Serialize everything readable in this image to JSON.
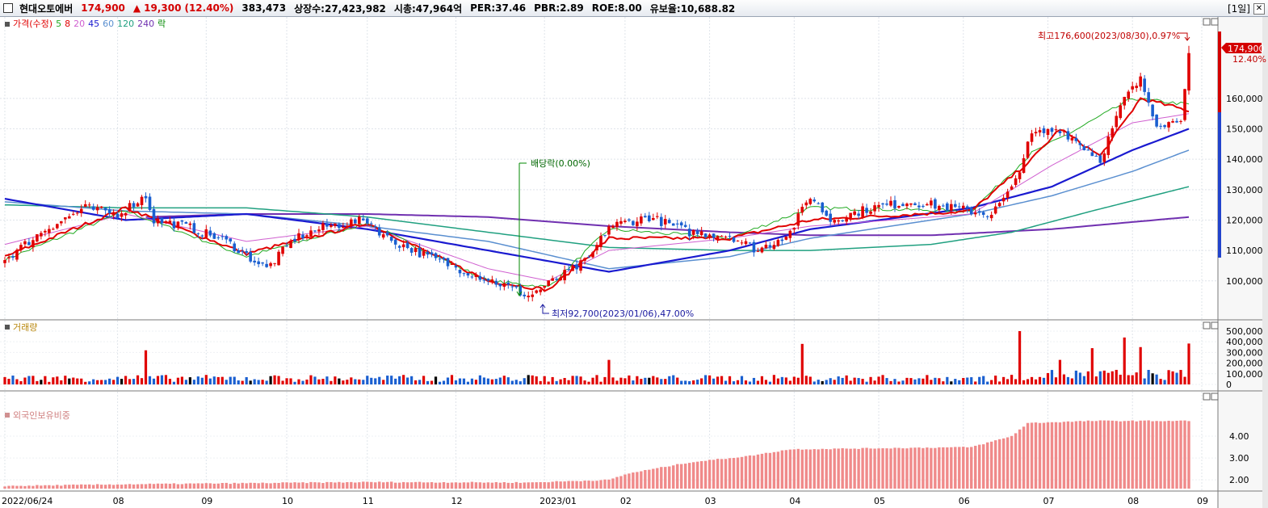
{
  "header": {
    "stock_name": "현대오토에버",
    "price": "174,900",
    "change_arrow": "▲",
    "change": "19,300",
    "change_pct": "(12.40%)",
    "volume": "383,473",
    "listed_shares": "상장수:27,423,982",
    "market_cap": "시총:47,964억",
    "per": "PER:37.46",
    "pbr": "PBR:2.89",
    "roe": "ROE:8.00",
    "retention": "유보율:10,688.82",
    "period": "[1일]",
    "close_icon": "close-icon"
  },
  "legend": {
    "items": [
      {
        "text": "가격(수정)",
        "color": "#e00000"
      },
      {
        "text": "5",
        "color": "#22aa22"
      },
      {
        "text": "8",
        "color": "#e00000"
      },
      {
        "text": "20",
        "color": "#d060d0"
      },
      {
        "text": "45",
        "color": "#1a1ad0"
      },
      {
        "text": "60",
        "color": "#5a8fd0"
      },
      {
        "text": "120",
        "color": "#20a080"
      },
      {
        "text": "240",
        "color": "#7030b0"
      },
      {
        "text": "락",
        "color": "#008800"
      }
    ]
  },
  "annotations": {
    "high": "최고176,600(2023/08/30),0.97%",
    "low": "최저92,700(2023/01/06),47.00%",
    "ex_dividend": "배당락(0.00%)",
    "last_price": "174,900",
    "last_change": "12.40%"
  },
  "volume_panel": {
    "title": "거래량"
  },
  "foreign_panel": {
    "title": "외국인보유비중"
  },
  "chart_data": [
    {
      "type": "candlestick",
      "title": "가격(수정)",
      "x_tick_labels": [
        "2022/06/24",
        "08",
        "09",
        "10",
        "11",
        "12",
        "2023/01",
        "02",
        "03",
        "04",
        "05",
        "06",
        "07",
        "08",
        "09"
      ],
      "y_tick_labels": [
        "100,000",
        "110,000",
        "120,000",
        "130,000",
        "140,000",
        "150,000",
        "160,000"
      ],
      "ylim": [
        88000,
        182000
      ],
      "close_approx": [
        [
          0,
          107000
        ],
        [
          10,
          117000
        ],
        [
          20,
          124000
        ],
        [
          28,
          122000
        ],
        [
          35,
          128000
        ],
        [
          37,
          120000
        ],
        [
          45,
          118000
        ],
        [
          55,
          113000
        ],
        [
          65,
          104000
        ],
        [
          72,
          114000
        ],
        [
          80,
          118000
        ],
        [
          90,
          120000
        ],
        [
          95,
          114000
        ],
        [
          105,
          108000
        ],
        [
          115,
          103000
        ],
        [
          125,
          98000
        ],
        [
          130,
          95000
        ],
        [
          135,
          99000
        ],
        [
          145,
          107000
        ],
        [
          150,
          118000
        ],
        [
          160,
          121000
        ],
        [
          170,
          116000
        ],
        [
          180,
          115000
        ],
        [
          187,
          110000
        ],
        [
          195,
          116000
        ],
        [
          200,
          128000
        ],
        [
          205,
          120000
        ],
        [
          215,
          124000
        ],
        [
          225,
          126000
        ],
        [
          235,
          124000
        ],
        [
          245,
          122000
        ],
        [
          250,
          130000
        ],
        [
          255,
          148000
        ],
        [
          262,
          150000
        ],
        [
          268,
          144000
        ],
        [
          272,
          140000
        ],
        [
          278,
          160000
        ],
        [
          282,
          166000
        ],
        [
          286,
          152000
        ],
        [
          290,
          152000
        ],
        [
          292,
          154000
        ],
        [
          294,
          174900
        ]
      ],
      "ma_5_approx": [
        [
          0,
          107000
        ],
        [
          30,
          123000
        ],
        [
          60,
          108000
        ],
        [
          90,
          119000
        ],
        [
          120,
          100000
        ],
        [
          135,
          98000
        ],
        [
          150,
          117000
        ],
        [
          180,
          114000
        ],
        [
          200,
          124000
        ],
        [
          240,
          123000
        ],
        [
          255,
          142000
        ],
        [
          265,
          149000
        ],
        [
          280,
          160000
        ],
        [
          294,
          158000
        ]
      ],
      "ma_8_approx": [
        [
          0,
          108000
        ],
        [
          30,
          124000
        ],
        [
          60,
          109000
        ],
        [
          90,
          119000
        ],
        [
          120,
          100000
        ],
        [
          135,
          97000
        ],
        [
          150,
          114000
        ],
        [
          180,
          114000
        ],
        [
          200,
          120000
        ],
        [
          240,
          123000
        ],
        [
          255,
          140000
        ],
        [
          262,
          150000
        ],
        [
          272,
          141000
        ],
        [
          282,
          160000
        ],
        [
          294,
          156000
        ]
      ],
      "ma_20_approx": [
        [
          0,
          112000
        ],
        [
          30,
          122000
        ],
        [
          60,
          113000
        ],
        [
          90,
          118000
        ],
        [
          120,
          104000
        ],
        [
          135,
          100000
        ],
        [
          150,
          110000
        ],
        [
          180,
          114000
        ],
        [
          200,
          118000
        ],
        [
          240,
          122000
        ],
        [
          260,
          138000
        ],
        [
          280,
          152000
        ],
        [
          294,
          155000
        ]
      ],
      "ma_45_approx": [
        [
          0,
          127000
        ],
        [
          30,
          120000
        ],
        [
          60,
          122000
        ],
        [
          90,
          117000
        ],
        [
          120,
          110000
        ],
        [
          150,
          103000
        ],
        [
          180,
          110000
        ],
        [
          200,
          117000
        ],
        [
          240,
          124000
        ],
        [
          260,
          131000
        ],
        [
          280,
          143000
        ],
        [
          294,
          150000
        ]
      ],
      "ma_60_approx": [
        [
          0,
          126000
        ],
        [
          30,
          123000
        ],
        [
          60,
          122000
        ],
        [
          90,
          118000
        ],
        [
          120,
          113000
        ],
        [
          150,
          104000
        ],
        [
          180,
          108000
        ],
        [
          200,
          114000
        ],
        [
          240,
          122000
        ],
        [
          260,
          128000
        ],
        [
          280,
          136000
        ],
        [
          294,
          143000
        ]
      ],
      "ma_120_approx": [
        [
          0,
          125000
        ],
        [
          30,
          124000
        ],
        [
          60,
          124000
        ],
        [
          90,
          121000
        ],
        [
          120,
          116000
        ],
        [
          150,
          111000
        ],
        [
          180,
          110000
        ],
        [
          200,
          110000
        ],
        [
          230,
          112000
        ],
        [
          250,
          116000
        ],
        [
          270,
          123000
        ],
        [
          294,
          131000
        ]
      ],
      "ma_240_approx": [
        [
          35,
          121000
        ],
        [
          60,
          122000
        ],
        [
          90,
          122000
        ],
        [
          120,
          121000
        ],
        [
          150,
          118000
        ],
        [
          180,
          116000
        ],
        [
          200,
          115000
        ],
        [
          230,
          115000
        ],
        [
          260,
          117000
        ],
        [
          294,
          121000
        ]
      ]
    },
    {
      "type": "bar",
      "title": "거래량",
      "y_tick_labels": [
        "0",
        "100,000",
        "200,000",
        "300,000",
        "400,000",
        "500,000"
      ],
      "ylim": [
        0,
        530000
      ],
      "spikes": [
        [
          35,
          320000
        ],
        [
          150,
          230000
        ],
        [
          198,
          380000
        ],
        [
          252,
          500000
        ],
        [
          262,
          230000
        ],
        [
          270,
          340000
        ],
        [
          278,
          440000
        ],
        [
          282,
          350000
        ],
        [
          294,
          383473
        ]
      ],
      "baseline_volume": 60000
    },
    {
      "type": "bar",
      "title": "외국인보유비중",
      "y_tick_labels": [
        "2.00",
        "3.00",
        "4.00"
      ],
      "ylim": [
        1.6,
        5.0
      ],
      "value_approx": [
        [
          0,
          1.72
        ],
        [
          30,
          1.8
        ],
        [
          90,
          1.9
        ],
        [
          130,
          1.88
        ],
        [
          150,
          2.0
        ],
        [
          155,
          2.3
        ],
        [
          170,
          2.8
        ],
        [
          185,
          3.1
        ],
        [
          195,
          3.4
        ],
        [
          240,
          3.5
        ],
        [
          250,
          4.0
        ],
        [
          254,
          4.6
        ],
        [
          270,
          4.7
        ],
        [
          285,
          4.7
        ],
        [
          294,
          4.7
        ]
      ]
    }
  ]
}
